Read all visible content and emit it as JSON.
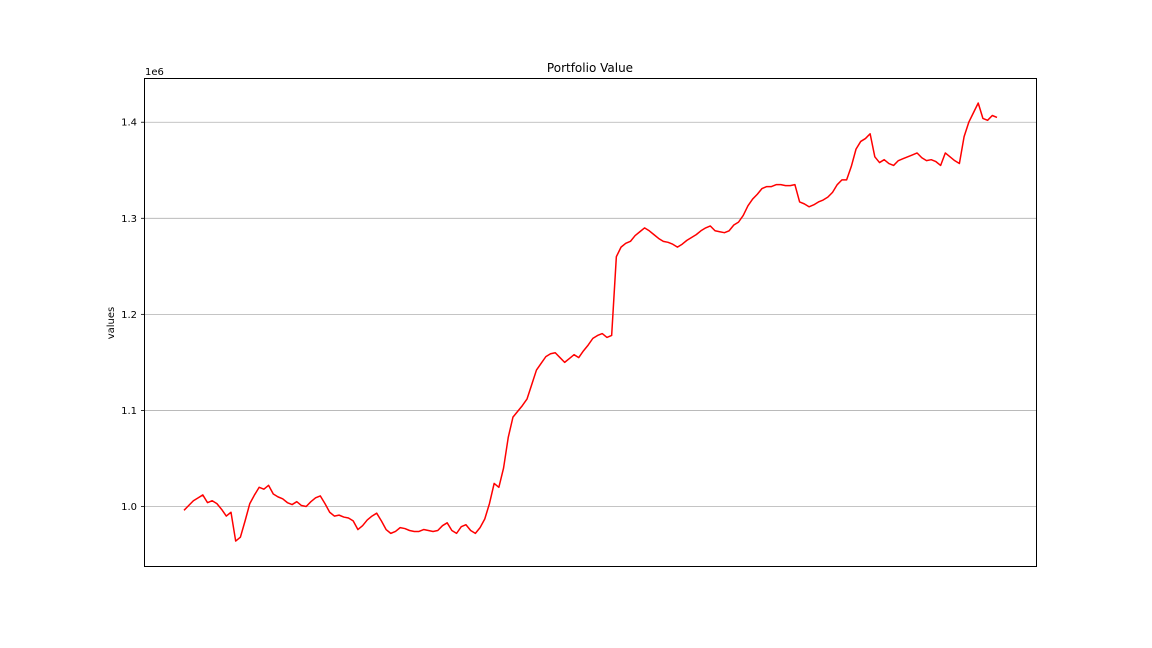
{
  "chart_data": {
    "type": "line",
    "title": "Portfolio Value",
    "xlabel": "",
    "ylabel": "values",
    "y_offset_label": "1e6",
    "ylim": [
      0.937,
      1.445
    ],
    "grid": "y",
    "line_color": "#ff0000",
    "grid_color": "#b0b0b0",
    "y_ticks": [
      {
        "value": 1.0,
        "label": "1.0"
      },
      {
        "value": 1.1,
        "label": "1.1"
      },
      {
        "value": 1.2,
        "label": "1.2"
      },
      {
        "value": 1.3,
        "label": "1.3"
      },
      {
        "value": 1.4,
        "label": "1.4"
      }
    ],
    "series": [
      {
        "values": [
          0.996,
          1.001,
          1.006,
          1.009,
          1.012,
          1.004,
          1.006,
          1.003,
          0.997,
          0.99,
          0.994,
          0.964,
          0.968,
          0.985,
          1.003,
          1.012,
          1.02,
          1.018,
          1.022,
          1.013,
          1.01,
          1.008,
          1.004,
          1.002,
          1.005,
          1.001,
          1.0,
          1.005,
          1.009,
          1.011,
          1.003,
          0.994,
          0.99,
          0.991,
          0.989,
          0.988,
          0.985,
          0.976,
          0.98,
          0.986,
          0.99,
          0.993,
          0.985,
          0.976,
          0.972,
          0.974,
          0.978,
          0.977,
          0.975,
          0.974,
          0.974,
          0.976,
          0.975,
          0.974,
          0.975,
          0.98,
          0.983,
          0.975,
          0.972,
          0.979,
          0.981,
          0.975,
          0.972,
          0.978,
          0.987,
          1.003,
          1.024,
          1.02,
          1.04,
          1.072,
          1.093,
          1.099,
          1.105,
          1.112,
          1.127,
          1.142,
          1.149,
          1.156,
          1.159,
          1.16,
          1.155,
          1.15,
          1.154,
          1.158,
          1.155,
          1.162,
          1.168,
          1.175,
          1.178,
          1.18,
          1.176,
          1.178,
          1.26,
          1.27,
          1.274,
          1.276,
          1.282,
          1.286,
          1.29,
          1.287,
          1.283,
          1.279,
          1.276,
          1.275,
          1.273,
          1.27,
          1.273,
          1.277,
          1.28,
          1.283,
          1.287,
          1.29,
          1.292,
          1.287,
          1.286,
          1.285,
          1.287,
          1.293,
          1.296,
          1.303,
          1.313,
          1.32,
          1.325,
          1.331,
          1.333,
          1.333,
          1.335,
          1.335,
          1.334,
          1.334,
          1.335,
          1.317,
          1.315,
          1.312,
          1.314,
          1.317,
          1.319,
          1.322,
          1.327,
          1.335,
          1.34,
          1.34,
          1.354,
          1.372,
          1.38,
          1.383,
          1.388,
          1.364,
          1.358,
          1.361,
          1.357,
          1.355,
          1.36,
          1.362,
          1.364,
          1.366,
          1.368,
          1.363,
          1.36,
          1.361,
          1.359,
          1.355,
          1.368,
          1.364,
          1.36,
          1.357,
          1.385,
          1.4,
          1.41,
          1.42,
          1.404,
          1.402,
          1.407,
          1.405
        ]
      }
    ]
  }
}
